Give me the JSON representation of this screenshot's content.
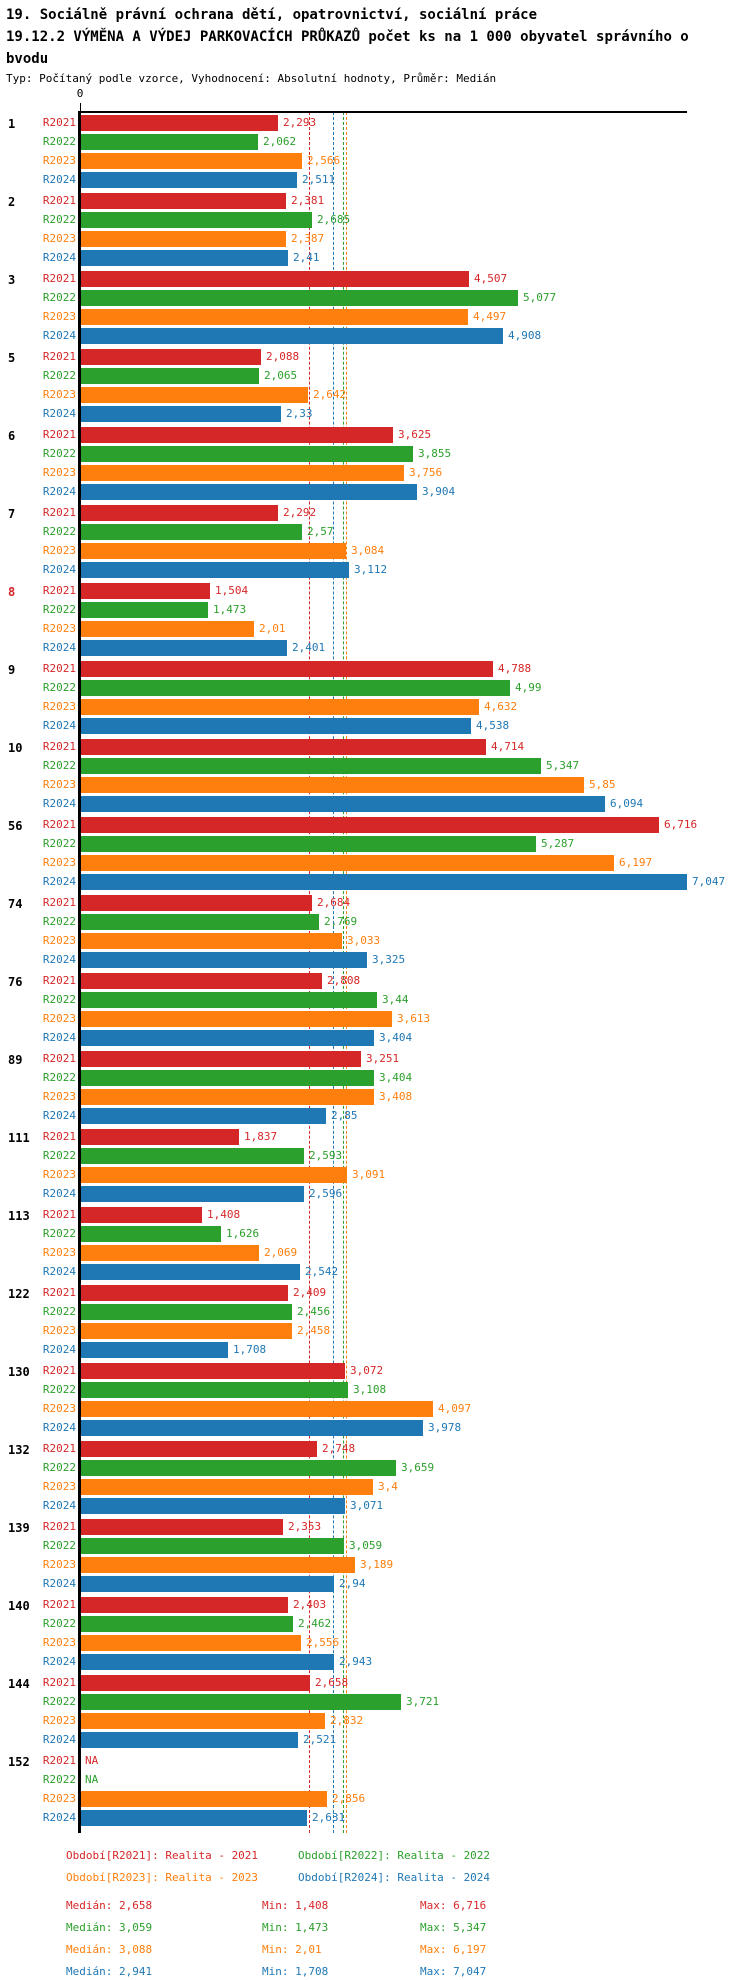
{
  "header": {
    "title_line1": "19. Sociálně právní ochrana dětí, opatrovnictví, sociální práce",
    "title_line2": "19.12.2 VÝMĚNA A VÝDEJ PARKOVACÍCH PRŮKAZŮ počet ks na 1 000 obyvatel správního o",
    "title_line2_wrap": "bvodu",
    "meta": "Typ: Počítaný podle vzorce, Vyhodnocení: Absolutní hodnoty, Průměr: Medián"
  },
  "chart_data": {
    "type": "bar",
    "orientation": "horizontal",
    "title": "19.12.2 VÝMĚNA A VÝDEJ PARKOVACÍCH PRŮKAZŮ počet ks na 1 000 obyvatel správního obvodu",
    "xlabel": "",
    "ylabel": "",
    "xlim": [
      0,
      7.047
    ],
    "grid": false,
    "legend_position": "bottom",
    "decimal_separator": ",",
    "axis": {
      "origin_label": "0"
    },
    "series_labels": [
      "R2021",
      "R2022",
      "R2023",
      "R2024"
    ],
    "colors": {
      "R2021": "#d62728",
      "R2022": "#2ca02c",
      "R2023": "#ff7f0e",
      "R2024": "#1f77b4",
      "axis": "#000000"
    },
    "na_label": "NA",
    "medians": {
      "R2021": 2.658,
      "R2022": 3.059,
      "R2023": 3.088,
      "R2024": 2.941
    },
    "groups": [
      {
        "id": "1",
        "values": [
          2.293,
          2.062,
          2.566,
          2.511
        ],
        "labels": [
          "2,293",
          "2,062",
          "2,566",
          "2,511"
        ]
      },
      {
        "id": "2",
        "values": [
          2.381,
          2.685,
          2.387,
          2.41
        ],
        "labels": [
          "2,381",
          "2,685",
          "2,387",
          "2,41"
        ]
      },
      {
        "id": "3",
        "values": [
          4.507,
          5.077,
          4.497,
          4.908
        ],
        "labels": [
          "4,507",
          "5,077",
          "4,497",
          "4,908"
        ]
      },
      {
        "id": "5",
        "values": [
          2.088,
          2.065,
          2.642,
          2.33
        ],
        "labels": [
          "2,088",
          "2,065",
          "2,642",
          "2,33"
        ]
      },
      {
        "id": "6",
        "values": [
          3.625,
          3.855,
          3.756,
          3.904
        ],
        "labels": [
          "3,625",
          "3,855",
          "3,756",
          "3,904"
        ]
      },
      {
        "id": "7",
        "values": [
          2.292,
          2.57,
          3.084,
          3.112
        ],
        "labels": [
          "2,292",
          "2,57",
          "3,084",
          "3,112"
        ]
      },
      {
        "id": "8",
        "highlight": true,
        "values": [
          1.504,
          1.473,
          2.01,
          2.401
        ],
        "labels": [
          "1,504",
          "1,473",
          "2,01",
          "2,401"
        ]
      },
      {
        "id": "9",
        "values": [
          4.788,
          4.99,
          4.632,
          4.538
        ],
        "labels": [
          "4,788",
          "4,99",
          "4,632",
          "4,538"
        ]
      },
      {
        "id": "10",
        "values": [
          4.714,
          5.347,
          5.85,
          6.094
        ],
        "labels": [
          "4,714",
          "5,347",
          "5,85",
          "6,094"
        ]
      },
      {
        "id": "56",
        "values": [
          6.716,
          5.287,
          6.197,
          7.047
        ],
        "labels": [
          "6,716",
          "5,287",
          "6,197",
          "7,047"
        ]
      },
      {
        "id": "74",
        "values": [
          2.684,
          2.769,
          3.033,
          3.325
        ],
        "labels": [
          "2,684",
          "2,769",
          "3,033",
          "3,325"
        ]
      },
      {
        "id": "76",
        "values": [
          2.808,
          3.44,
          3.613,
          3.404
        ],
        "labels": [
          "2,808",
          "3,44",
          "3,613",
          "3,404"
        ]
      },
      {
        "id": "89",
        "values": [
          3.251,
          3.404,
          3.408,
          2.85
        ],
        "labels": [
          "3,251",
          "3,404",
          "3,408",
          "2,85"
        ]
      },
      {
        "id": "111",
        "values": [
          1.837,
          2.593,
          3.091,
          2.596
        ],
        "labels": [
          "1,837",
          "2,593",
          "3,091",
          "2,596"
        ]
      },
      {
        "id": "113",
        "values": [
          1.408,
          1.626,
          2.069,
          2.542
        ],
        "labels": [
          "1,408",
          "1,626",
          "2,069",
          "2,542"
        ]
      },
      {
        "id": "122",
        "values": [
          2.409,
          2.456,
          2.458,
          1.708
        ],
        "labels": [
          "2,409",
          "2,456",
          "2,458",
          "1,708"
        ]
      },
      {
        "id": "130",
        "values": [
          3.072,
          3.108,
          4.097,
          3.978
        ],
        "labels": [
          "3,072",
          "3,108",
          "4,097",
          "3,978"
        ]
      },
      {
        "id": "132",
        "values": [
          2.748,
          3.659,
          3.4,
          3.071
        ],
        "labels": [
          "2,748",
          "3,659",
          "3,4",
          "3,071"
        ]
      },
      {
        "id": "139",
        "values": [
          2.353,
          3.059,
          3.189,
          2.94
        ],
        "labels": [
          "2,353",
          "3,059",
          "3,189",
          "2,94"
        ]
      },
      {
        "id": "140",
        "values": [
          2.403,
          2.462,
          2.556,
          2.943
        ],
        "labels": [
          "2,403",
          "2,462",
          "2,556",
          "2,943"
        ]
      },
      {
        "id": "144",
        "values": [
          2.658,
          3.721,
          2.832,
          2.521
        ],
        "labels": [
          "2,658",
          "3,721",
          "2,832",
          "2,521"
        ]
      },
      {
        "id": "152",
        "values": [
          null,
          null,
          2.856,
          2.631
        ],
        "labels": [
          "NA",
          "NA",
          "2,856",
          "2,631"
        ]
      }
    ]
  },
  "legend": {
    "items": [
      {
        "series": "R2021",
        "label": "Období[R2021]: Realita - 2021"
      },
      {
        "series": "R2022",
        "label": "Období[R2022]: Realita - 2022"
      },
      {
        "series": "R2023",
        "label": "Období[R2023]: Realita - 2023"
      },
      {
        "series": "R2024",
        "label": "Období[R2024]: Realita - 2024"
      }
    ]
  },
  "stats": {
    "rows": [
      {
        "series": "R2021",
        "median": "Medián: 2,658",
        "min": "Min: 1,408",
        "max": "Max: 6,716"
      },
      {
        "series": "R2022",
        "median": "Medián: 3,059",
        "min": "Min: 1,473",
        "max": "Max: 5,347"
      },
      {
        "series": "R2023",
        "median": "Medián: 3,088",
        "min": "Min: 2,01",
        "max": "Max: 6,197"
      },
      {
        "series": "R2024",
        "median": "Medián: 2,941",
        "min": "Min: 1,708",
        "max": "Max: 7,047"
      }
    ]
  }
}
